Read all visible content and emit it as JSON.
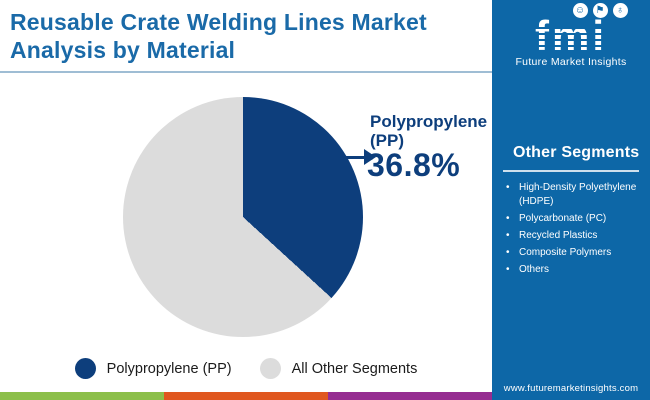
{
  "header": {
    "title_line1": "Reusable Crate Welding Lines Market",
    "title_line2": "Analysis by Material"
  },
  "logo": {
    "brand": "fmi",
    "tagline": "Future Market Insights"
  },
  "sidebar": {
    "heading": "Other Segments",
    "items": [
      "High-Density Polyethylene (HDPE)",
      "Polycarbonate (PC)",
      "Recycled Plastics",
      "Composite Polymers",
      "Others"
    ],
    "website": "www.futuremarketinsights.com"
  },
  "chart_data": {
    "type": "pie",
    "title": "Reusable Crate Welding Lines Market Analysis by Material",
    "slices": [
      {
        "label": "Polypropylene (PP)",
        "value": 36.8,
        "color": "#0d3e7c"
      },
      {
        "label": "All Other Segments",
        "value": 63.2,
        "color": "#dcdcdc"
      }
    ],
    "callout": {
      "label": "Polypropylene (PP)",
      "value": "36.8%"
    },
    "legend": [
      "Polypropylene (PP)",
      "All Other Segments"
    ],
    "legend_position": "bottom",
    "start_angle_deg": 0,
    "direction": "clockwise"
  },
  "colors": {
    "title_blue": "#1a6aa8",
    "sidebar_blue": "#0d67a7",
    "pie_primary": "#0d3e7c",
    "pie_secondary": "#dcdcdc",
    "header_divider": "#9fbdd4",
    "strip_green": "#8cbf4a",
    "strip_orange": "#e0571f",
    "strip_purple": "#962d91"
  }
}
